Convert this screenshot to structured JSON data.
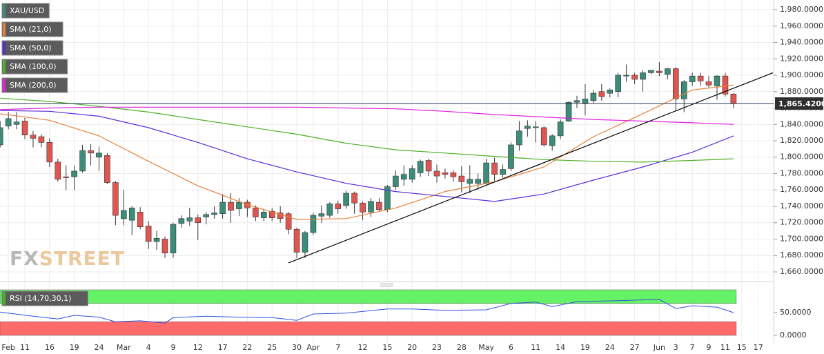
{
  "chart_data": [
    {
      "type": "candlestick",
      "categories": [
        null,
        "Feb",
        null,
        "11",
        null,
        null,
        "16",
        null,
        null,
        "19",
        null,
        null,
        "24",
        null,
        null,
        "Mar",
        null,
        null,
        "4",
        null,
        null,
        "9",
        null,
        null,
        "12",
        null,
        null,
        "17",
        null,
        null,
        "22",
        null,
        null,
        "25",
        null,
        null,
        "30",
        null,
        "Apr",
        null,
        null,
        "7",
        null,
        null,
        "12",
        null,
        null,
        "15",
        null,
        null,
        "20",
        null,
        null,
        "23",
        null,
        null,
        "28",
        null,
        null,
        "May",
        null,
        null,
        "6",
        null,
        null,
        "11",
        null,
        null,
        "14",
        null,
        null,
        "19",
        null,
        null,
        "24",
        null,
        null,
        "27",
        null,
        null,
        "Jun",
        null,
        "3",
        null,
        "7",
        null,
        "9",
        null,
        "11",
        null,
        "15",
        null,
        "17"
      ],
      "series": [
        {
          "name": "XAU/USD",
          "color": "#3b8c78",
          "color_up": "#3b8c78",
          "color_down": "#e0554f",
          "open": [
            1815,
            1838,
            1840,
            1844,
            1827,
            1825,
            1818,
            1794,
            1776,
            1776,
            1783,
            1808,
            1800,
            1802,
            1769,
            1725,
            1723,
            1733,
            1716,
            1697,
            1700,
            1683,
            1719,
            1722,
            1726,
            1727,
            1730,
            1731,
            1745,
            1737,
            1745,
            1738,
            1726,
            1734,
            1732,
            1731,
            1712,
            1684,
            1708,
            1728,
            1729,
            1743,
            1741,
            1756,
            1744,
            1733,
            1745,
            1736,
            1764,
            1773,
            1773,
            1781,
            1796,
            1783,
            1781,
            1781,
            1777,
            1768,
            1768,
            1768,
            1793,
            1779,
            1786,
            1815,
            1835,
            1836,
            1836,
            1814,
            1826,
            1844,
            1867,
            1866,
            1869,
            1880,
            1878,
            1880,
            1899,
            1900,
            1895,
            1903,
            1905,
            1901,
            1908,
            1871,
            1892,
            1899,
            1892,
            1887,
            1899,
            1877,
            null,
            null,
            null
          ],
          "high": [
            1844,
            1855,
            1855,
            1848,
            1832,
            1828,
            1823,
            1798,
            1790,
            1790,
            1815,
            1816,
            1813,
            1805,
            1771,
            1760,
            1740,
            1739,
            1722,
            1710,
            1703,
            1720,
            1729,
            1738,
            1730,
            1733,
            1740,
            1755,
            1756,
            1750,
            1748,
            1741,
            1737,
            1738,
            1740,
            1733,
            1714,
            1710,
            1732,
            1741,
            1745,
            1747,
            1759,
            1758,
            1746,
            1750,
            1750,
            1766,
            1784,
            1790,
            1790,
            1797,
            1798,
            1791,
            1786,
            1784,
            1789,
            1790,
            1780,
            1798,
            1799,
            1791,
            1818,
            1844,
            1845,
            1844,
            1838,
            1828,
            1846,
            1868,
            1875,
            1889,
            1882,
            1889,
            1884,
            1903,
            1913,
            1903,
            1906,
            1906,
            1916,
            1909,
            1910,
            1894,
            1903,
            1903,
            1899,
            1900,
            1903,
            1878,
            null,
            null,
            null
          ],
          "low": [
            1812,
            1834,
            1834,
            1822,
            1812,
            1812,
            1788,
            1770,
            1760,
            1760,
            1781,
            1790,
            1783,
            1767,
            1717,
            1717,
            1705,
            1712,
            1688,
            1687,
            1677,
            1677,
            1714,
            1716,
            1699,
            1718,
            1725,
            1725,
            1720,
            1728,
            1727,
            1722,
            1722,
            1722,
            1720,
            1706,
            1677,
            1677,
            1705,
            1720,
            1726,
            1731,
            1737,
            1731,
            1723,
            1727,
            1734,
            1733,
            1760,
            1765,
            1769,
            1776,
            1777,
            1769,
            1774,
            1770,
            1757,
            1756,
            1760,
            1766,
            1771,
            1775,
            1783,
            1808,
            1825,
            1818,
            1813,
            1808,
            1822,
            1843,
            1860,
            1851,
            1866,
            1869,
            1873,
            1873,
            1892,
            1889,
            1880,
            1901,
            1899,
            1895,
            1857,
            1855,
            1887,
            1887,
            1885,
            1870,
            1874,
            1860,
            null,
            null,
            null
          ],
          "close": [
            1836,
            1847,
            1843,
            1827,
            1823,
            1818,
            1794,
            1773,
            1775,
            1783,
            1808,
            1805,
            1805,
            1769,
            1729,
            1735,
            1738,
            1715,
            1697,
            1701,
            1683,
            1718,
            1725,
            1726,
            1720,
            1730,
            1732,
            1745,
            1735,
            1745,
            1738,
            1727,
            1733,
            1726,
            1725,
            1712,
            1684,
            1708,
            1729,
            1731,
            1743,
            1737,
            1756,
            1744,
            1733,
            1746,
            1736,
            1764,
            1777,
            1779,
            1786,
            1795,
            1783,
            1777,
            1779,
            1776,
            1770,
            1773,
            1773,
            1793,
            1779,
            1785,
            1815,
            1832,
            1838,
            1837,
            1815,
            1826,
            1843,
            1867,
            1869,
            1871,
            1878,
            1874,
            1882,
            1900,
            1900,
            1895,
            1903,
            1906,
            1903,
            1908,
            1871,
            1892,
            1899,
            1893,
            1888,
            1899,
            1877,
            1865.42,
            null,
            null,
            null
          ]
        }
      ],
      "overlays": [
        {
          "name": "SMA (21,0)",
          "color": "#e8803a",
          "x": [
            0,
            6,
            12,
            18,
            24,
            30,
            36,
            42,
            48,
            54,
            60,
            66,
            72,
            78,
            84,
            89
          ],
          "values": [
            1853,
            1845,
            1826,
            1795,
            1765,
            1742,
            1724,
            1725,
            1738,
            1758,
            1770,
            1788,
            1825,
            1853,
            1882,
            1888
          ]
        },
        {
          "name": "SMA (50,0)",
          "color": "#5a2bd6",
          "x": [
            0,
            6,
            12,
            18,
            24,
            30,
            36,
            42,
            48,
            54,
            60,
            66,
            72,
            78,
            84,
            89
          ],
          "values": [
            1857,
            1856,
            1850,
            1836,
            1818,
            1798,
            1782,
            1768,
            1758,
            1752,
            1746,
            1755,
            1772,
            1788,
            1806,
            1826
          ]
        },
        {
          "name": "SMA (100,0)",
          "color": "#4cb025",
          "x": [
            0,
            6,
            12,
            18,
            24,
            30,
            36,
            42,
            48,
            54,
            60,
            66,
            72,
            78,
            84,
            89
          ],
          "values": [
            1872,
            1868,
            1862,
            1855,
            1846,
            1837,
            1828,
            1817,
            1809,
            1805,
            1801,
            1797,
            1795,
            1794,
            1796,
            1798
          ]
        },
        {
          "name": "SMA (200,0)",
          "color": "#e020e0",
          "x": [
            0,
            6,
            12,
            18,
            24,
            30,
            36,
            42,
            48,
            54,
            60,
            66,
            72,
            78,
            84,
            89
          ],
          "values": [
            1858,
            1860,
            1861,
            1861,
            1861,
            1861,
            1861,
            1860,
            1859,
            1856,
            1852,
            1849,
            1846,
            1844,
            1842,
            1840
          ]
        }
      ],
      "trendline": {
        "color": "#000000",
        "x": [
          35,
          93.8
        ],
        "values": [
          1671,
          1903
        ]
      },
      "last_price": {
        "value": 1865.42,
        "label": "1,865.4200"
      },
      "ylim": [
        1648.2,
        1991.8
      ],
      "yticks": [
        {
          "value": 1660,
          "label": "1,660.0000"
        },
        {
          "value": 1680,
          "label": "1,680.0000"
        },
        {
          "value": 1700,
          "label": "1,700.0000"
        },
        {
          "value": 1720,
          "label": "1,720.0000"
        },
        {
          "value": 1740,
          "label": "1,740.0000"
        },
        {
          "value": 1760,
          "label": "1,760.0000"
        },
        {
          "value": 1780,
          "label": "1,780.0000"
        },
        {
          "value": 1800,
          "label": "1,800.0000"
        },
        {
          "value": 1820,
          "label": "1,820.0000"
        },
        {
          "value": 1840,
          "label": "1,840.0000"
        },
        {
          "value": 1860,
          "label": "1,860.0000"
        },
        {
          "value": 1880,
          "label": "1,880.0000"
        },
        {
          "value": 1900,
          "label": "1,900.0000"
        },
        {
          "value": 1920,
          "label": "1,920.0000"
        },
        {
          "value": 1940,
          "label": "1,940.0000"
        },
        {
          "value": 1960,
          "label": "1,960.0000"
        },
        {
          "value": 1980,
          "label": "1,980.0000"
        }
      ],
      "grid": true,
      "watermark": {
        "fx": "FX",
        "street": "STREET"
      }
    },
    {
      "type": "line",
      "series": [
        {
          "name": "RSI (14,70,30,1)",
          "color": "#3050e0",
          "strip_color": "#4cb025",
          "x": [
            0,
            4,
            7,
            9,
            12,
            14,
            17,
            20,
            21,
            25,
            29,
            33,
            36,
            38,
            42,
            47,
            50,
            54,
            59,
            62,
            65,
            67,
            70,
            75,
            80,
            82,
            84,
            87,
            89
          ],
          "values": [
            51,
            42,
            36,
            44,
            40,
            30,
            32,
            27,
            39,
            42,
            40,
            39,
            33,
            47,
            49,
            58,
            58,
            55,
            56,
            70,
            73,
            63,
            74,
            76,
            79,
            59,
            65,
            62,
            50
          ]
        }
      ],
      "bands": [
        {
          "range": [
            70,
            100
          ],
          "color": "#66f266"
        },
        {
          "range": [
            0,
            30
          ],
          "color": "#ff6b6b"
        }
      ],
      "ylim": [
        0,
        100
      ],
      "yticks": [
        {
          "value": 50,
          "label": "50.0000"
        },
        {
          "value": 0,
          "label": "0.0000"
        }
      ]
    }
  ]
}
